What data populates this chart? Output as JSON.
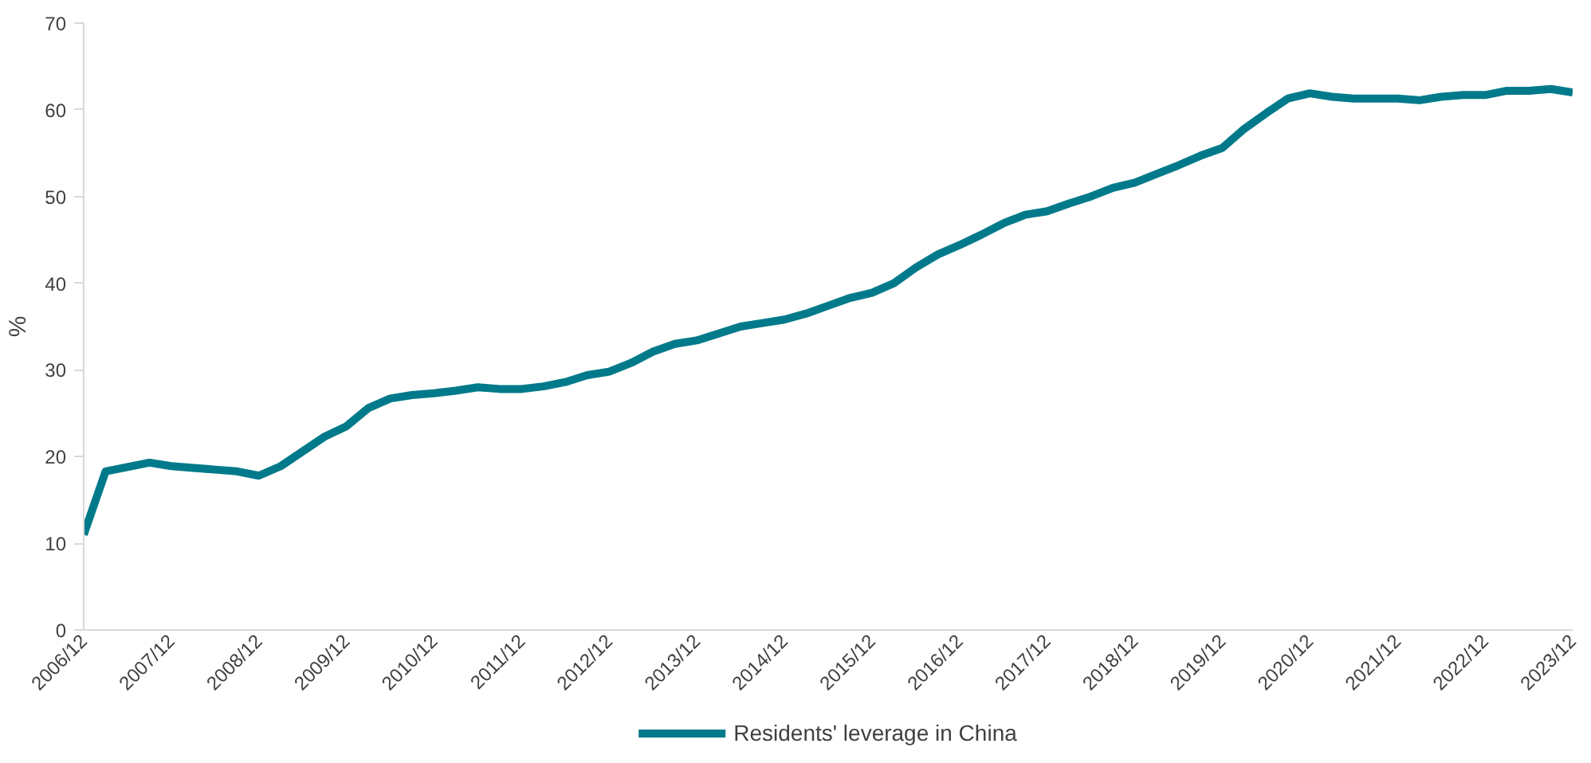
{
  "chart_data": {
    "type": "line",
    "ylabel": "%",
    "categories": [
      "2006/12",
      null,
      null,
      null,
      "2007/12",
      null,
      null,
      null,
      "2008/12",
      null,
      null,
      null,
      "2009/12",
      null,
      null,
      null,
      "2010/12",
      null,
      null,
      null,
      "2011/12",
      null,
      null,
      null,
      "2012/12",
      null,
      null,
      null,
      "2013/12",
      null,
      null,
      null,
      "2014/12",
      null,
      null,
      null,
      "2015/12",
      null,
      null,
      null,
      "2016/12",
      null,
      null,
      null,
      "2017/12",
      null,
      null,
      null,
      "2018/12",
      null,
      null,
      null,
      "2019/12",
      null,
      null,
      null,
      "2020/12",
      null,
      null,
      null,
      "2021/12",
      null,
      null,
      null,
      "2022/12",
      null,
      null,
      null,
      "2023/12"
    ],
    "series": [
      {
        "name": "Residents' leverage in China",
        "color": "#007a8a",
        "values": [
          11,
          18.3,
          18.8,
          19.3,
          18.9,
          18.7,
          18.5,
          18.3,
          17.8,
          18.9,
          20.6,
          22.3,
          23.5,
          25.6,
          26.7,
          27.1,
          27.3,
          27.6,
          28.0,
          27.8,
          27.8,
          28.1,
          28.6,
          29.4,
          29.8,
          30.8,
          32.1,
          33.0,
          33.4,
          34.2,
          35.0,
          35.4,
          35.8,
          36.5,
          37.4,
          38.3,
          38.9,
          40.0,
          41.8,
          43.3,
          44.4,
          45.6,
          46.9,
          47.9,
          48.3,
          49.2,
          50.0,
          51.0,
          51.6,
          52.6,
          53.6,
          54.7,
          55.6,
          57.8,
          59.6,
          61.3,
          61.9,
          61.5,
          61.3,
          61.3,
          61.3,
          61.1,
          61.5,
          61.7,
          61.7,
          62.2,
          62.2,
          62.4,
          62.0
        ]
      }
    ],
    "ylim": [
      0,
      70
    ],
    "yticks": [
      0,
      10,
      20,
      30,
      40,
      50,
      60,
      70
    ],
    "grid": false,
    "legend": "bottom",
    "marker": "none",
    "line_style": "solid"
  }
}
